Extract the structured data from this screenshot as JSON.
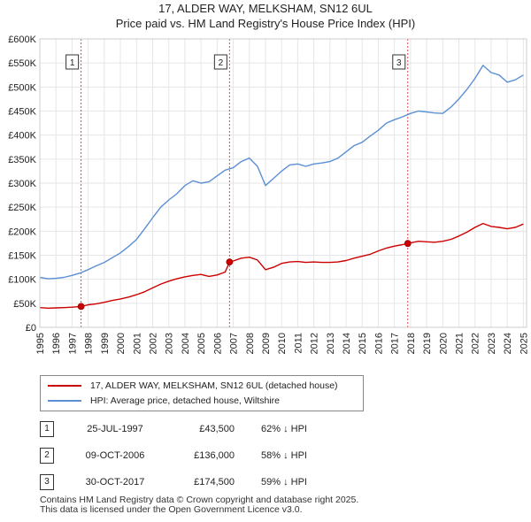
{
  "title_line1": "17, ALDER WAY, MELKSHAM, SN12 6UL",
  "title_line2": "Price paid vs. HM Land Registry's House Price Index (HPI)",
  "colors": {
    "property": "#cc0000",
    "hpi": "#5b8fd4",
    "vline": "#dd4444",
    "grid": "#e6e6e6"
  },
  "chart_data": {
    "type": "line",
    "title": "17, ALDER WAY, MELKSHAM, SN12 6UL — Price paid vs. HM Land Registry's House Price Index (HPI)",
    "xlabel": "",
    "ylabel": "",
    "xlim": [
      1995,
      2025.2
    ],
    "ylim": [
      0,
      600000
    ],
    "x_ticks": [
      "1995",
      "1996",
      "1997",
      "1998",
      "1999",
      "2000",
      "2001",
      "2002",
      "2003",
      "2004",
      "2005",
      "2006",
      "2007",
      "2008",
      "2009",
      "2010",
      "2011",
      "2012",
      "2013",
      "2014",
      "2015",
      "2016",
      "2017",
      "2018",
      "2019",
      "2020",
      "2021",
      "2022",
      "2023",
      "2024",
      "2025"
    ],
    "y_ticks": [
      {
        "value": 0,
        "label": "£0"
      },
      {
        "value": 50000,
        "label": "£50K"
      },
      {
        "value": 100000,
        "label": "£100K"
      },
      {
        "value": 150000,
        "label": "£150K"
      },
      {
        "value": 200000,
        "label": "£200K"
      },
      {
        "value": 250000,
        "label": "£250K"
      },
      {
        "value": 300000,
        "label": "£300K"
      },
      {
        "value": 350000,
        "label": "£350K"
      },
      {
        "value": 400000,
        "label": "£400K"
      },
      {
        "value": 450000,
        "label": "£450K"
      },
      {
        "value": 500000,
        "label": "£500K"
      },
      {
        "value": 550000,
        "label": "£550K"
      },
      {
        "value": 600000,
        "label": "£600K"
      }
    ],
    "series": [
      {
        "name": "17, ALDER WAY, MELKSHAM, SN12 6UL (detached house)",
        "color": "#cc0000",
        "x": [
          1995.0,
          1995.5,
          1996.0,
          1996.5,
          1997.0,
          1997.56,
          1998.0,
          1998.5,
          1999.0,
          1999.5,
          2000.0,
          2000.5,
          2001.0,
          2001.5,
          2002.0,
          2002.5,
          2003.0,
          2003.5,
          2004.0,
          2004.5,
          2005.0,
          2005.5,
          2006.0,
          2006.5,
          2006.77,
          2007.0,
          2007.5,
          2008.0,
          2008.5,
          2009.0,
          2009.5,
          2010.0,
          2010.5,
          2011.0,
          2011.5,
          2012.0,
          2012.5,
          2013.0,
          2013.5,
          2014.0,
          2014.5,
          2015.0,
          2015.5,
          2016.0,
          2016.5,
          2017.0,
          2017.5,
          2017.83,
          2018.0,
          2018.5,
          2019.0,
          2019.5,
          2020.0,
          2020.5,
          2021.0,
          2021.5,
          2022.0,
          2022.5,
          2023.0,
          2023.5,
          2024.0,
          2024.5,
          2025.0
        ],
        "y": [
          41000,
          40000,
          40500,
          41000,
          42000,
          43500,
          47000,
          49000,
          52000,
          56000,
          59000,
          63000,
          68000,
          74000,
          82000,
          90000,
          96000,
          101000,
          105000,
          108000,
          110000,
          106000,
          109000,
          115000,
          136000,
          138000,
          144000,
          146000,
          140000,
          120000,
          125000,
          133000,
          136000,
          137000,
          135000,
          136000,
          135000,
          135000,
          136000,
          139000,
          144000,
          148000,
          152000,
          159000,
          165000,
          169000,
          172000,
          174500,
          176000,
          179000,
          178000,
          177000,
          179000,
          183000,
          190000,
          198000,
          208000,
          216000,
          210000,
          208000,
          205000,
          208000,
          215000
        ]
      },
      {
        "name": "HPI: Average price, detached house, Wiltshire",
        "color": "#5b8fd4",
        "x": [
          1995.0,
          1995.5,
          1996.0,
          1996.5,
          1997.0,
          1997.5,
          1998.0,
          1998.5,
          1999.0,
          1999.5,
          2000.0,
          2000.5,
          2001.0,
          2001.5,
          2002.0,
          2002.5,
          2003.0,
          2003.5,
          2004.0,
          2004.5,
          2005.0,
          2005.5,
          2006.0,
          2006.5,
          2007.0,
          2007.5,
          2008.0,
          2008.5,
          2009.0,
          2009.5,
          2010.0,
          2010.5,
          2011.0,
          2011.5,
          2012.0,
          2012.5,
          2013.0,
          2013.5,
          2014.0,
          2014.5,
          2015.0,
          2015.5,
          2016.0,
          2016.5,
          2017.0,
          2017.5,
          2018.0,
          2018.5,
          2019.0,
          2019.5,
          2020.0,
          2020.5,
          2021.0,
          2021.5,
          2022.0,
          2022.5,
          2023.0,
          2023.5,
          2024.0,
          2024.5,
          2025.0
        ],
        "y": [
          104000,
          101000,
          102000,
          104000,
          108000,
          113000,
          120000,
          128000,
          135000,
          145000,
          155000,
          168000,
          183000,
          205000,
          228000,
          250000,
          265000,
          278000,
          295000,
          305000,
          300000,
          303000,
          315000,
          327000,
          332000,
          345000,
          352000,
          335000,
          295000,
          310000,
          325000,
          338000,
          340000,
          335000,
          340000,
          342000,
          345000,
          352000,
          365000,
          378000,
          385000,
          398000,
          410000,
          425000,
          432000,
          438000,
          445000,
          450000,
          448000,
          446000,
          445000,
          458000,
          475000,
          495000,
          518000,
          545000,
          530000,
          525000,
          510000,
          515000,
          525000
        ]
      }
    ],
    "sales": [
      {
        "id": "1",
        "x": 1997.56,
        "price": 43500,
        "date": "25-JUL-1997",
        "price_label": "£43,500",
        "hpi_label": "62% ↓ HPI"
      },
      {
        "id": "2",
        "x": 2006.77,
        "price": 136000,
        "date": "09-OCT-2006",
        "price_label": "£136,000",
        "hpi_label": "58% ↓ HPI"
      },
      {
        "id": "3",
        "x": 2017.83,
        "price": 174500,
        "date": "30-OCT-2017",
        "price_label": "£174,500",
        "hpi_label": "59% ↓ HPI"
      }
    ]
  },
  "legend": {
    "property_label": "17, ALDER WAY, MELKSHAM, SN12 6UL (detached house)",
    "hpi_label": "HPI: Average price, detached house, Wiltshire"
  },
  "footer": {
    "line1": "Contains HM Land Registry data © Crown copyright and database right 2025.",
    "line2": "This data is licensed under the Open Government Licence v3.0."
  }
}
